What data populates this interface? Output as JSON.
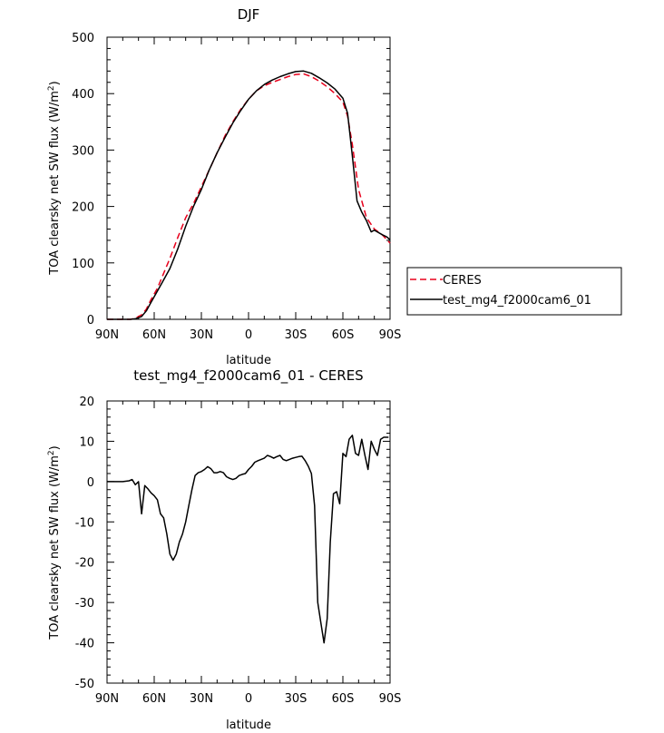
{
  "chart_data": [
    {
      "type": "line",
      "title": "DJF",
      "xlabel": "latitude",
      "ylabel": "TOA clearsky net SW flux (W/m",
      "ylabel_sup": "2",
      "ylabel_close": ")",
      "xlim": [
        90,
        -90
      ],
      "ylim": [
        0,
        500
      ],
      "x_ticks": [
        90,
        60,
        30,
        0,
        -30,
        -60,
        -90
      ],
      "x_tick_labels": [
        "90N",
        "60N",
        "30N",
        "0",
        "30S",
        "60S",
        "90S"
      ],
      "y_ticks": [
        0,
        100,
        200,
        300,
        400,
        500
      ],
      "y_tick_labels": [
        "0",
        "100",
        "200",
        "300",
        "400",
        "500"
      ],
      "legend_position": "right",
      "series": [
        {
          "name": "CERES",
          "color": "#e8001c",
          "dash": true,
          "x": [
            90,
            85,
            80,
            75,
            72,
            68,
            65,
            62,
            58,
            55,
            50,
            45,
            40,
            35,
            30,
            25,
            20,
            15,
            10,
            5,
            0,
            -5,
            -10,
            -15,
            -20,
            -25,
            -30,
            -35,
            -40,
            -45,
            -50,
            -55,
            -60,
            -63,
            -66,
            -70,
            -75,
            -80,
            -85,
            -90
          ],
          "y": [
            0,
            0,
            0,
            0,
            2,
            8,
            18,
            35,
            55,
            75,
            108,
            145,
            180,
            205,
            235,
            265,
            295,
            325,
            350,
            372,
            390,
            405,
            414,
            420,
            425,
            430,
            434,
            435,
            430,
            422,
            412,
            400,
            385,
            360,
            310,
            230,
            180,
            160,
            150,
            135
          ]
        },
        {
          "name": "test_mg4_f2000cam6_01",
          "color": "#000000",
          "dash": false,
          "x": [
            90,
            85,
            80,
            75,
            72,
            68,
            65,
            62,
            58,
            55,
            50,
            45,
            40,
            35,
            30,
            25,
            20,
            15,
            10,
            5,
            0,
            -5,
            -10,
            -15,
            -20,
            -25,
            -30,
            -35,
            -40,
            -45,
            -50,
            -55,
            -60,
            -63,
            -66,
            -69,
            -72,
            -75,
            -78,
            -80,
            -85,
            -88,
            -90
          ],
          "y": [
            0,
            0,
            0,
            0,
            1,
            5,
            15,
            30,
            50,
            65,
            90,
            125,
            165,
            200,
            230,
            265,
            295,
            322,
            348,
            370,
            390,
            405,
            416,
            424,
            430,
            435,
            439,
            440,
            436,
            428,
            419,
            408,
            392,
            365,
            290,
            210,
            190,
            175,
            155,
            158,
            150,
            146,
            141
          ]
        }
      ]
    },
    {
      "type": "line",
      "title": "test_mg4_f2000cam6_01 - CERES",
      "xlabel": "latitude",
      "ylabel": "TOA clearsky net SW flux (W/m",
      "ylabel_sup": "2",
      "ylabel_close": ")",
      "xlim": [
        90,
        -90
      ],
      "ylim": [
        -50,
        20
      ],
      "x_ticks": [
        90,
        60,
        30,
        0,
        -30,
        -60,
        -90
      ],
      "x_tick_labels": [
        "90N",
        "60N",
        "30N",
        "0",
        "30S",
        "60S",
        "90S"
      ],
      "y_ticks": [
        -50,
        -40,
        -30,
        -20,
        -10,
        0,
        10,
        20
      ],
      "y_tick_labels": [
        "-50",
        "-40",
        "-30",
        "-20",
        "-10",
        "0",
        "10",
        "20"
      ],
      "series": [
        {
          "color": "#000000",
          "x": [
            90,
            85,
            80,
            76,
            74,
            72,
            70,
            68,
            66,
            64,
            62,
            60,
            58,
            56,
            54,
            52,
            50,
            48,
            46,
            44,
            42,
            40,
            38,
            36,
            34,
            32,
            30,
            28,
            26,
            24,
            22,
            20,
            18,
            16,
            14,
            12,
            10,
            8,
            6,
            4,
            2,
            0,
            -2,
            -4,
            -6,
            -8,
            -10,
            -12,
            -14,
            -16,
            -18,
            -20,
            -22,
            -24,
            -26,
            -28,
            -30,
            -32,
            -34,
            -36,
            -38,
            -40,
            -42,
            -44,
            -46,
            -48,
            -50,
            -52,
            -54,
            -56,
            -58,
            -60,
            -62,
            -64,
            -66,
            -68,
            -70,
            -72,
            -74,
            -76,
            -78,
            -80,
            -82,
            -84,
            -86,
            -88,
            -89
          ],
          "y": [
            0,
            0,
            0,
            0.2,
            0.5,
            -0.8,
            0,
            -8,
            -1,
            -1.8,
            -2.8,
            -3.5,
            -4.5,
            -8,
            -9,
            -13,
            -18,
            -19.5,
            -18,
            -15,
            -13,
            -10,
            -6,
            -2,
            1.5,
            2.2,
            2.5,
            3,
            3.7,
            3.2,
            2.2,
            2.2,
            2.5,
            2.2,
            1.2,
            0.8,
            0.5,
            0.8,
            1.5,
            1.8,
            2,
            3,
            3.8,
            4.8,
            5.2,
            5.5,
            5.8,
            6.5,
            6.2,
            5.8,
            6.2,
            6.5,
            5.5,
            5.2,
            5.5,
            5.8,
            6,
            6.2,
            6.3,
            5.2,
            3.8,
            2,
            -6,
            -30,
            -35,
            -40,
            -34,
            -15,
            -3,
            -2.5,
            -5.5,
            7,
            6.2,
            10.5,
            11.5,
            7,
            6.5,
            10.5,
            6.5,
            3,
            10,
            8,
            6.5,
            10.5,
            11,
            11,
            11
          ]
        }
      ]
    }
  ]
}
